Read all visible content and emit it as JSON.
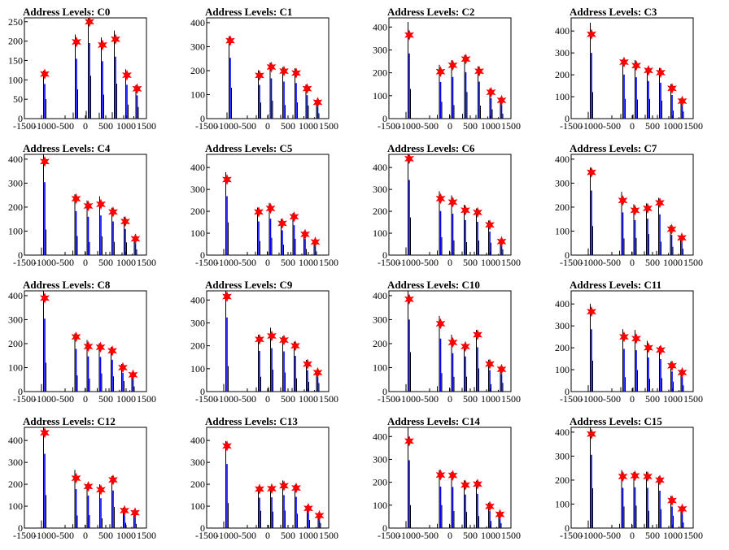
{
  "figure": {
    "colors": {
      "histogram": "#000000",
      "spike": "#0000ff",
      "marker": "#ff0000"
    },
    "marker_icon": "star-icon"
  },
  "chart_data": [
    {
      "type": "bar",
      "title": "Address Levels: C0",
      "xlim": [
        -1500,
        1500
      ],
      "ylim": [
        0,
        260
      ],
      "x_ticks": [
        -1500,
        -1000,
        -500,
        0,
        500,
        1000,
        1500
      ],
      "y_ticks": [
        0,
        50,
        100,
        150,
        200,
        250
      ],
      "peaks": [
        {
          "x": -1000,
          "y": 115
        },
        {
          "x": -220,
          "y": 198
        },
        {
          "x": 100,
          "y": 250
        },
        {
          "x": 420,
          "y": 190
        },
        {
          "x": 740,
          "y": 205
        },
        {
          "x": 1020,
          "y": 112
        },
        {
          "x": 1270,
          "y": 77
        }
      ]
    },
    {
      "type": "bar",
      "title": "Address Levels: C1",
      "xlim": [
        -1500,
        1500
      ],
      "ylim": [
        0,
        420
      ],
      "x_ticks": [
        -1500,
        -1000,
        -500,
        0,
        500,
        1000,
        1500
      ],
      "y_ticks": [
        0,
        100,
        200,
        300,
        400
      ],
      "peaks": [
        {
          "x": -920,
          "y": 325
        },
        {
          "x": -200,
          "y": 180
        },
        {
          "x": 90,
          "y": 215
        },
        {
          "x": 400,
          "y": 198
        },
        {
          "x": 700,
          "y": 190
        },
        {
          "x": 970,
          "y": 125
        },
        {
          "x": 1230,
          "y": 68
        }
      ]
    },
    {
      "type": "bar",
      "title": "Address Levels: C2",
      "xlim": [
        -1500,
        1500
      ],
      "ylim": [
        0,
        440
      ],
      "x_ticks": [
        -1500,
        -1000,
        -500,
        0,
        500,
        1000,
        1500
      ],
      "y_ticks": [
        0,
        100,
        200,
        300,
        400
      ],
      "peaks": [
        {
          "x": -1000,
          "y": 365
        },
        {
          "x": -230,
          "y": 205
        },
        {
          "x": 70,
          "y": 233
        },
        {
          "x": 390,
          "y": 260
        },
        {
          "x": 720,
          "y": 207
        },
        {
          "x": 1010,
          "y": 115
        },
        {
          "x": 1270,
          "y": 80
        }
      ]
    },
    {
      "type": "bar",
      "title": "Address Levels: C3",
      "xlim": [
        -1500,
        1500
      ],
      "ylim": [
        0,
        460
      ],
      "x_ticks": [
        -1500,
        -1000,
        -500,
        0,
        500,
        1000,
        1500
      ],
      "y_ticks": [
        0,
        100,
        200,
        300,
        400
      ],
      "peaks": [
        {
          "x": -1000,
          "y": 385
        },
        {
          "x": -200,
          "y": 258
        },
        {
          "x": 100,
          "y": 242
        },
        {
          "x": 400,
          "y": 220
        },
        {
          "x": 700,
          "y": 210
        },
        {
          "x": 980,
          "y": 138
        },
        {
          "x": 1230,
          "y": 80
        }
      ]
    },
    {
      "type": "bar",
      "title": "Address Levels: C4",
      "xlim": [
        -1500,
        1500
      ],
      "ylim": [
        0,
        420
      ],
      "x_ticks": [
        -1500,
        -1000,
        -500,
        0,
        500,
        1000,
        1500
      ],
      "y_ticks": [
        0,
        100,
        200,
        300,
        400
      ],
      "peaks": [
        {
          "x": -1000,
          "y": 390
        },
        {
          "x": -230,
          "y": 235
        },
        {
          "x": 70,
          "y": 205
        },
        {
          "x": 380,
          "y": 212
        },
        {
          "x": 680,
          "y": 180
        },
        {
          "x": 980,
          "y": 140
        },
        {
          "x": 1230,
          "y": 68
        }
      ]
    },
    {
      "type": "bar",
      "title": "Address Levels: C5",
      "xlim": [
        -1500,
        1500
      ],
      "ylim": [
        0,
        460
      ],
      "x_ticks": [
        -1500,
        -1000,
        -500,
        0,
        500,
        1000,
        1500
      ],
      "y_ticks": [
        0,
        100,
        200,
        300,
        400
      ],
      "peaks": [
        {
          "x": -1000,
          "y": 345
        },
        {
          "x": -220,
          "y": 197
        },
        {
          "x": 70,
          "y": 213
        },
        {
          "x": 360,
          "y": 145
        },
        {
          "x": 650,
          "y": 175
        },
        {
          "x": 920,
          "y": 95
        },
        {
          "x": 1170,
          "y": 60
        }
      ]
    },
    {
      "type": "bar",
      "title": "Address Levels: C6",
      "xlim": [
        -1500,
        1500
      ],
      "ylim": [
        0,
        460
      ],
      "x_ticks": [
        -1500,
        -1000,
        -500,
        0,
        500,
        1000,
        1500
      ],
      "y_ticks": [
        0,
        100,
        200,
        300,
        400
      ],
      "peaks": [
        {
          "x": -1000,
          "y": 440
        },
        {
          "x": -230,
          "y": 258
        },
        {
          "x": 70,
          "y": 242
        },
        {
          "x": 380,
          "y": 205
        },
        {
          "x": 680,
          "y": 195
        },
        {
          "x": 980,
          "y": 138
        },
        {
          "x": 1270,
          "y": 62
        }
      ]
    },
    {
      "type": "bar",
      "title": "Address Levels: C7",
      "xlim": [
        -1500,
        1500
      ],
      "ylim": [
        0,
        420
      ],
      "x_ticks": [
        -1500,
        -1000,
        -500,
        0,
        500,
        1000,
        1500
      ],
      "y_ticks": [
        0,
        100,
        200,
        300,
        400
      ],
      "peaks": [
        {
          "x": -1000,
          "y": 345
        },
        {
          "x": -230,
          "y": 228
        },
        {
          "x": 70,
          "y": 187
        },
        {
          "x": 380,
          "y": 195
        },
        {
          "x": 680,
          "y": 218
        },
        {
          "x": 970,
          "y": 108
        },
        {
          "x": 1220,
          "y": 72
        }
      ]
    },
    {
      "type": "bar",
      "title": "Address Levels: C8",
      "xlim": [
        -1500,
        1500
      ],
      "ylim": [
        0,
        420
      ],
      "x_ticks": [
        -1500,
        -1000,
        -500,
        0,
        500,
        1000,
        1500
      ],
      "y_ticks": [
        0,
        100,
        200,
        300,
        400
      ],
      "peaks": [
        {
          "x": -1000,
          "y": 390
        },
        {
          "x": -230,
          "y": 228
        },
        {
          "x": 70,
          "y": 188
        },
        {
          "x": 370,
          "y": 185
        },
        {
          "x": 660,
          "y": 170
        },
        {
          "x": 920,
          "y": 100
        },
        {
          "x": 1170,
          "y": 70
        }
      ]
    },
    {
      "type": "bar",
      "title": "Address Levels: C9",
      "xlim": [
        -1500,
        1500
      ],
      "ylim": [
        0,
        440
      ],
      "x_ticks": [
        -1500,
        -1000,
        -500,
        0,
        500,
        1000,
        1500
      ],
      "y_ticks": [
        0,
        100,
        200,
        300,
        400
      ],
      "peaks": [
        {
          "x": -1000,
          "y": 415
        },
        {
          "x": -200,
          "y": 228
        },
        {
          "x": 100,
          "y": 243
        },
        {
          "x": 400,
          "y": 225
        },
        {
          "x": 680,
          "y": 200
        },
        {
          "x": 980,
          "y": 120
        },
        {
          "x": 1230,
          "y": 83
        }
      ]
    },
    {
      "type": "bar",
      "title": "Address Levels: C10",
      "xlim": [
        -1500,
        1500
      ],
      "ylim": [
        0,
        420
      ],
      "x_ticks": [
        -1500,
        -1000,
        -500,
        0,
        500,
        1000,
        1500
      ],
      "y_ticks": [
        0,
        100,
        200,
        300,
        400
      ],
      "peaks": [
        {
          "x": -1000,
          "y": 385
        },
        {
          "x": -230,
          "y": 283
        },
        {
          "x": 70,
          "y": 205
        },
        {
          "x": 380,
          "y": 188
        },
        {
          "x": 680,
          "y": 237
        },
        {
          "x": 980,
          "y": 115
        },
        {
          "x": 1270,
          "y": 93
        }
      ]
    },
    {
      "type": "bar",
      "title": "Address Levels: C11",
      "xlim": [
        -1500,
        1500
      ],
      "ylim": [
        0,
        460
      ],
      "x_ticks": [
        -1500,
        -1000,
        -500,
        0,
        500,
        1000,
        1500
      ],
      "y_ticks": [
        0,
        100,
        200,
        300,
        400
      ],
      "peaks": [
        {
          "x": -1000,
          "y": 365
        },
        {
          "x": -200,
          "y": 250
        },
        {
          "x": 100,
          "y": 242
        },
        {
          "x": 400,
          "y": 200
        },
        {
          "x": 700,
          "y": 190
        },
        {
          "x": 980,
          "y": 118
        },
        {
          "x": 1230,
          "y": 87
        }
      ]
    },
    {
      "type": "bar",
      "title": "Address Levels: C12",
      "xlim": [
        -1500,
        1500
      ],
      "ylim": [
        0,
        460
      ],
      "x_ticks": [
        -1500,
        -1000,
        -500,
        0,
        500,
        1000,
        1500
      ],
      "y_ticks": [
        0,
        100,
        200,
        300,
        400
      ],
      "peaks": [
        {
          "x": -1000,
          "y": 435
        },
        {
          "x": -230,
          "y": 228
        },
        {
          "x": 70,
          "y": 190
        },
        {
          "x": 380,
          "y": 175
        },
        {
          "x": 680,
          "y": 220
        },
        {
          "x": 960,
          "y": 80
        },
        {
          "x": 1220,
          "y": 70
        }
      ]
    },
    {
      "type": "bar",
      "title": "Address Levels: C13",
      "xlim": [
        -1500,
        1500
      ],
      "ylim": [
        0,
        460
      ],
      "x_ticks": [
        -1500,
        -1000,
        -500,
        0,
        500,
        1000,
        1500
      ],
      "y_ticks": [
        0,
        100,
        200,
        300,
        400
      ],
      "peaks": [
        {
          "x": -1000,
          "y": 375
        },
        {
          "x": -200,
          "y": 178
        },
        {
          "x": 100,
          "y": 180
        },
        {
          "x": 400,
          "y": 193
        },
        {
          "x": 700,
          "y": 183
        },
        {
          "x": 1000,
          "y": 90
        },
        {
          "x": 1270,
          "y": 57
        }
      ]
    },
    {
      "type": "bar",
      "title": "Address Levels: C14",
      "xlim": [
        -1500,
        1500
      ],
      "ylim": [
        0,
        440
      ],
      "x_ticks": [
        -1500,
        -1000,
        -500,
        0,
        500,
        1000,
        1500
      ],
      "y_ticks": [
        0,
        100,
        200,
        300,
        400
      ],
      "peaks": [
        {
          "x": -1000,
          "y": 380
        },
        {
          "x": -230,
          "y": 232
        },
        {
          "x": 70,
          "y": 230
        },
        {
          "x": 380,
          "y": 188
        },
        {
          "x": 680,
          "y": 192
        },
        {
          "x": 980,
          "y": 95
        },
        {
          "x": 1230,
          "y": 60
        }
      ]
    },
    {
      "type": "bar",
      "title": "Address Levels: C15",
      "xlim": [
        -1500,
        1500
      ],
      "ylim": [
        0,
        420
      ],
      "x_ticks": [
        -1500,
        -1000,
        -500,
        0,
        500,
        1000,
        1500
      ],
      "y_ticks": [
        0,
        100,
        200,
        300,
        400
      ],
      "peaks": [
        {
          "x": -1000,
          "y": 392
        },
        {
          "x": -230,
          "y": 215
        },
        {
          "x": 70,
          "y": 218
        },
        {
          "x": 380,
          "y": 215
        },
        {
          "x": 680,
          "y": 200
        },
        {
          "x": 980,
          "y": 115
        },
        {
          "x": 1230,
          "y": 80
        }
      ]
    }
  ]
}
